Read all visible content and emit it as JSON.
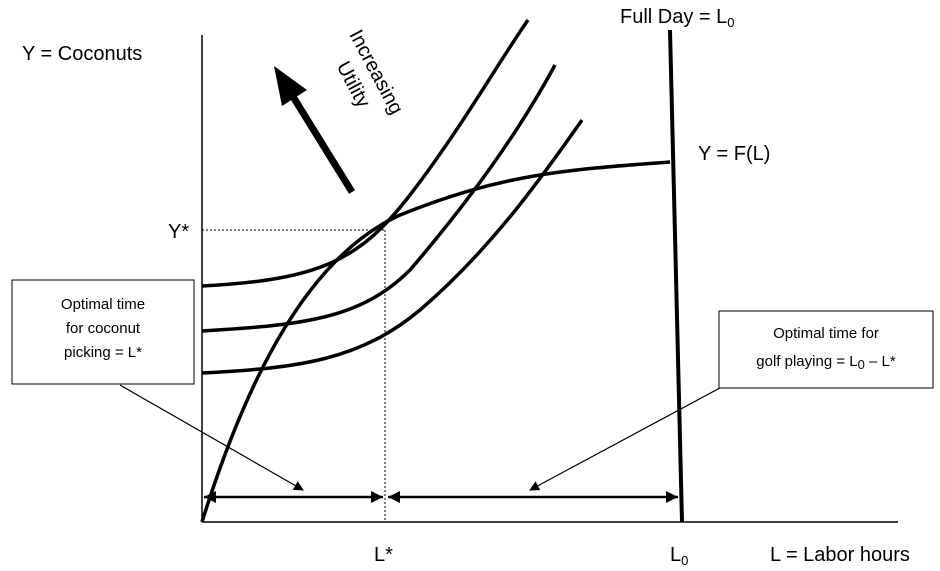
{
  "labels": {
    "y_axis": "Y = Coconuts",
    "x_axis": "L = Labor hours",
    "full_day": "Full Day = L",
    "full_day_sub": "0",
    "production": "Y = F(L)",
    "y_star": "Y*",
    "l_star": "L*",
    "l0": "L",
    "l0_sub": "0",
    "utility_line1": "Increasing",
    "utility_line2": "Utility"
  },
  "left_box": {
    "line1": "Optimal time",
    "line2": "for coconut",
    "line3": "picking = L*"
  },
  "right_box": {
    "line1": "Optimal time for",
    "line2_pre": "golf playing = L",
    "line2_sub": "0",
    "line2_post": " – L*"
  }
}
